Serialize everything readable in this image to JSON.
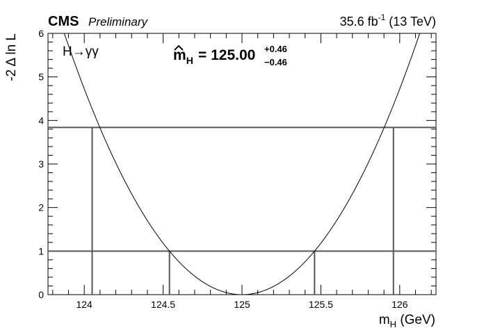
{
  "header": {
    "experiment": "CMS",
    "status": "Preliminary",
    "lumi": "35.6 fb",
    "lumi_exp": "-1",
    "energy": " (13 TeV)"
  },
  "annotations": {
    "process": "H→γγ",
    "result_symbol": "m",
    "result_sub": "H",
    "result_value": "= 125.00",
    "err_up": "+0.46",
    "err_down": "−0.46"
  },
  "chart_data": {
    "type": "line",
    "xlabel": "m",
    "xlabel_sub": "H",
    "xlabel_unit": " (GeV)",
    "ylabel": "-2 Δ ln L",
    "xlim": [
      123.77,
      126.23
    ],
    "ylim": [
      0,
      6
    ],
    "x_ticks": [
      124,
      124.5,
      125,
      125.5,
      126
    ],
    "x_tick_labels": [
      "124",
      "124.5",
      "125",
      "125.5",
      "126"
    ],
    "y_ticks": [
      0,
      1,
      2,
      3,
      4,
      5,
      6
    ],
    "y_tick_labels": [
      "0",
      "1",
      "2",
      "3",
      "4",
      "5",
      "6"
    ],
    "best_fit": 125.0,
    "err_up": 0.46,
    "err_down": 0.46,
    "series": [
      {
        "x": [
          123.77,
          123.9,
          124.05,
          124.2,
          124.4,
          124.54,
          124.7,
          124.85,
          125.0,
          125.15,
          125.3,
          125.46,
          125.6,
          125.8,
          125.96,
          126.1,
          126.23
        ],
        "values": [
          6.0,
          4.85,
          3.84,
          2.91,
          1.7,
          1.0,
          0.42,
          0.1,
          0.0,
          0.1,
          0.43,
          1.0,
          1.6,
          2.72,
          3.84,
          4.95,
          6.0
        ]
      }
    ],
    "horizontal_lines": [
      1,
      3.84
    ],
    "vertical_markers": [
      {
        "x": 124.05,
        "y": 3.84
      },
      {
        "x": 124.54,
        "y": 1
      },
      {
        "x": 125.46,
        "y": 1
      },
      {
        "x": 125.96,
        "y": 3.84
      }
    ]
  }
}
